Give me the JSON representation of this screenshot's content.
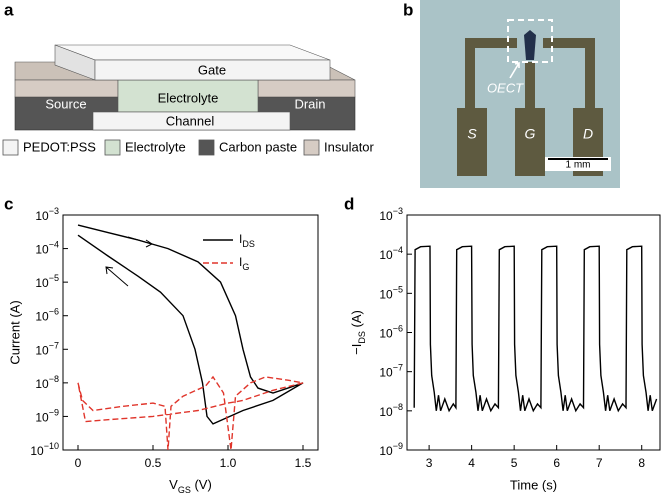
{
  "panel_a": {
    "label": "a",
    "layers": {
      "gate": "Gate",
      "electrolyte": "Electrolyte",
      "source": "Source",
      "drain": "Drain",
      "channel": "Channel"
    },
    "legend": [
      {
        "name": "PEDOT:PSS",
        "color": "#f4f4f4"
      },
      {
        "name": "Electrolyte",
        "color": "#d3e2d1"
      },
      {
        "name": "Carbon paste",
        "color": "#555555"
      },
      {
        "name": "Insulator",
        "color": "#d6ccc4"
      }
    ]
  },
  "panel_b": {
    "label": "b",
    "device": "OECT",
    "pads": [
      "S",
      "G",
      "D"
    ],
    "scale_bar": "1 mm"
  },
  "chart_data": [
    {
      "type": "line",
      "panel_label": "c",
      "x_label": "VGS (V)",
      "y_label": "Current (A)",
      "log_y": true,
      "legend_position": "upper right",
      "xlim": [
        -0.1,
        1.6
      ],
      "xticks": [
        0,
        0.5,
        {
          "value": 1,
          "label": "1.0"
        },
        1.5
      ],
      "ylim": [
        1e-10,
        0.001
      ],
      "yticks": [
        {
          "value": 1e-10,
          "label": "10−10"
        },
        {
          "value": 1e-09,
          "label": "10−9"
        },
        {
          "value": 1e-08,
          "label": "10−8"
        },
        {
          "value": 1e-07,
          "label": "10−7"
        },
        {
          "value": 1e-06,
          "label": "10−6"
        },
        {
          "value": 1e-05,
          "label": "10−5"
        },
        {
          "value": 0.0001,
          "label": "10−4"
        },
        {
          "value": 0.001,
          "label": "10−3"
        }
      ],
      "series": [
        {
          "name": "IDS",
          "color": "#000000",
          "dashed": false,
          "x": [
            0,
            0.2,
            0.4,
            0.6,
            0.8,
            0.95,
            1.05,
            1.1,
            1.15,
            1.2,
            1.3,
            1.4,
            1.5,
            1.3,
            1.1,
            0.9,
            0.86,
            0.83,
            0.78,
            0.7,
            0.55,
            0.4,
            0.2,
            0
          ],
          "values": [
            0.0005,
            0.0003,
            0.00018,
            0.0001,
            4e-05,
            1e-05,
            1e-06,
            1e-07,
            1.5e-08,
            7e-09,
            5e-09,
            7e-09,
            1e-08,
            3e-09,
            1.5e-09,
            6e-10,
            1e-09,
            1e-08,
            1e-07,
            1e-06,
            5e-06,
            1.5e-05,
            6e-05,
            0.00025
          ]
        },
        {
          "name": "IG",
          "color": "#e0352b",
          "dashed": true,
          "x": [
            0,
            0.03,
            0.1,
            0.3,
            0.5,
            0.58,
            0.6,
            0.62,
            0.7,
            0.85,
            0.9,
            0.97,
            1.02,
            1.05,
            1.15,
            1.25,
            1.4,
            1.5,
            1.3,
            1.1,
            1.0,
            0.8,
            0.5,
            0.2,
            0.05,
            0
          ],
          "values": [
            1e-08,
            3e-09,
            1.5e-09,
            2e-09,
            2.5e-09,
            2e-09,
            1e-10,
            2e-09,
            4e-09,
            8e-09,
            1.5e-08,
            5e-09,
            1e-10,
            4e-09,
            1e-08,
            1.5e-08,
            1.2e-08,
            1e-08,
            6e-09,
            3e-09,
            2.5e-09,
            1.5e-09,
            1e-09,
            8e-10,
            7e-10,
            1e-08
          ]
        }
      ]
    },
    {
      "type": "line",
      "panel_label": "d",
      "x_label": "Time (s)",
      "y_label": "−IDS (A)",
      "log_y": true,
      "xlim": [
        2.48,
        8.43
      ],
      "xticks": [
        3,
        4,
        5,
        6,
        7,
        8
      ],
      "ylim": [
        1e-09,
        0.001
      ],
      "yticks": [
        {
          "value": 1e-09,
          "label": "10−9"
        },
        {
          "value": 1e-08,
          "label": "10−8"
        },
        {
          "value": 1e-07,
          "label": "10−7"
        },
        {
          "value": 1e-06,
          "label": "10−6"
        },
        {
          "value": 1e-05,
          "label": "10−5"
        },
        {
          "value": 0.0001,
          "label": "10−4"
        },
        {
          "value": 0.001,
          "label": "10−3"
        }
      ],
      "series": [
        {
          "color": "#000000",
          "dashed": false,
          "x": [
            2.65,
            2.67,
            2.8,
            3.02,
            3.03,
            3.06,
            3.12,
            3.17,
            3.22,
            3.27,
            3.37,
            3.47,
            3.57,
            3.63,
            3.65,
            3.78,
            4.0,
            4.01,
            4.04,
            4.1,
            4.15,
            4.2,
            4.25,
            4.35,
            4.45,
            4.55,
            4.63,
            4.65,
            4.78,
            5.0,
            5.01,
            5.04,
            5.1,
            5.15,
            5.2,
            5.25,
            5.35,
            5.45,
            5.55,
            5.63,
            5.65,
            5.78,
            6.0,
            6.01,
            6.04,
            6.1,
            6.15,
            6.2,
            6.25,
            6.35,
            6.45,
            6.55,
            6.63,
            6.65,
            6.78,
            7.0,
            7.01,
            7.04,
            7.1,
            7.15,
            7.2,
            7.25,
            7.35,
            7.45,
            7.55,
            7.63,
            7.65,
            7.78,
            8.0,
            8.01,
            8.04,
            8.1,
            8.15,
            8.2,
            8.25,
            8.35
          ],
          "values": [
            1.2e-08,
            0.00013,
            0.000155,
            0.00016,
            5e-07,
            8e-08,
            3e-08,
            1e-08,
            2.5e-08,
            1e-08,
            2e-08,
            1e-08,
            1.5e-08,
            1.2e-08,
            0.00013,
            0.000155,
            0.00016,
            5e-07,
            8e-08,
            3e-08,
            1e-08,
            2.5e-08,
            1e-08,
            2e-08,
            1e-08,
            1.5e-08,
            1.2e-08,
            0.00013,
            0.000155,
            0.00016,
            5e-07,
            8e-08,
            3e-08,
            1e-08,
            2.5e-08,
            1e-08,
            2e-08,
            1e-08,
            1.5e-08,
            1.2e-08,
            0.00013,
            0.000155,
            0.00016,
            5e-07,
            8e-08,
            3e-08,
            1e-08,
            2.5e-08,
            1e-08,
            2e-08,
            1e-08,
            1.5e-08,
            1.2e-08,
            0.00013,
            0.000155,
            0.00016,
            5e-07,
            8e-08,
            3e-08,
            1e-08,
            2.5e-08,
            1e-08,
            2e-08,
            1e-08,
            1.5e-08,
            1.2e-08,
            0.00013,
            0.000155,
            0.00016,
            5e-07,
            8e-08,
            3e-08,
            1e-08,
            2.5e-08,
            1e-08,
            2e-08
          ]
        }
      ]
    }
  ]
}
